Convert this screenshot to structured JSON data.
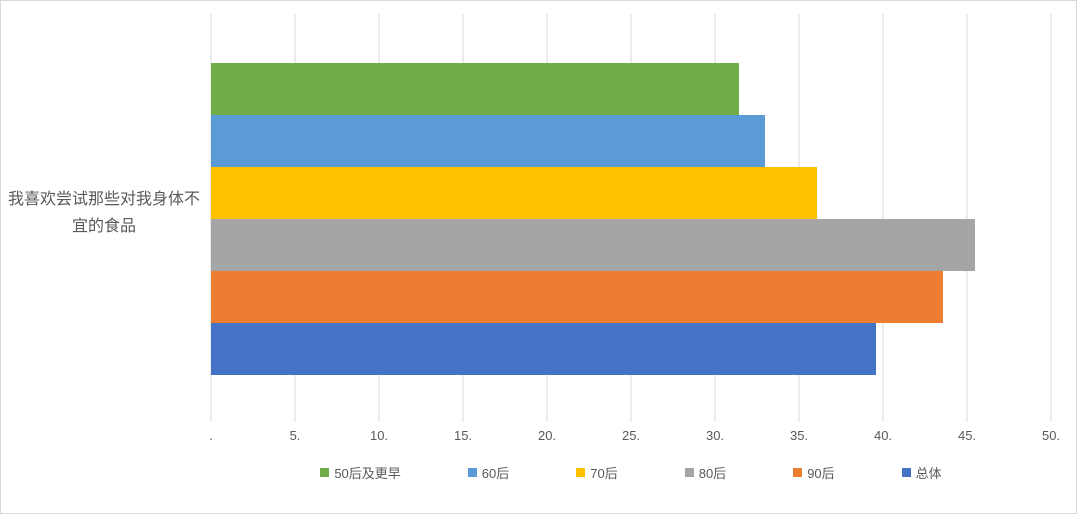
{
  "chart_data": {
    "type": "bar",
    "orientation": "horizontal",
    "title": "",
    "category_label": "我喜欢尝试那些对我身体不宜的食品",
    "categories": [
      "我喜欢尝试那些对我身体不宜的食品"
    ],
    "series": [
      {
        "name": "50后及更早",
        "value": 31.4,
        "color": "#70AD47"
      },
      {
        "name": "60后",
        "value": 33.0,
        "color": "#5B9BD5"
      },
      {
        "name": "70后",
        "value": 36.1,
        "color": "#FFC000"
      },
      {
        "name": "80后",
        "value": 45.5,
        "color": "#A5A5A5"
      },
      {
        "name": "90后",
        "value": 43.6,
        "color": "#ED7D31"
      },
      {
        "name": "总体",
        "value": 39.6,
        "color": "#4472C4"
      }
    ],
    "x_axis": {
      "min": 0,
      "max": 50,
      "step": 5,
      "tick_labels": [
        ".",
        "5.",
        "10.",
        "15.",
        "20.",
        "25.",
        "30.",
        "35.",
        "40.",
        "45.",
        "50."
      ]
    },
    "legend_position": "bottom",
    "gridlines": true
  },
  "colors": {
    "background": "#FFFFFF",
    "border": "#D9D9D9",
    "gridline": "#D9D9D9",
    "axis_text": "#595959",
    "label_text": "#595959"
  }
}
